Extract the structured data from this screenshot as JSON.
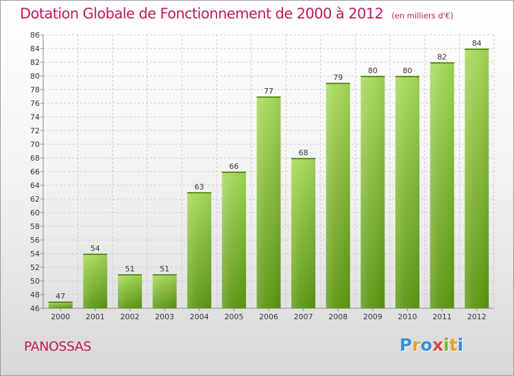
{
  "title": "Dotation Globale de Fonctionnement de 2000 à 2012",
  "unit_note": "(en milliers d'€)",
  "commune": "PANOSSAS",
  "logo": {
    "letters": [
      "P",
      "r",
      "o",
      "x",
      "i",
      "t",
      "i"
    ],
    "colors": [
      "#3a8fd8",
      "#e8a020",
      "#3a8fd8",
      "#e04050",
      "#7ab828",
      "#e8a020",
      "#3a8fd8"
    ]
  },
  "colors": {
    "title": "#c0185b",
    "bar_light": "#a6d95a",
    "bar_dark": "#5e9612",
    "grid": "#c8c8c8"
  },
  "chart_data": {
    "type": "bar",
    "title": "Dotation Globale de Fonctionnement de 2000 à 2012",
    "subtitle": "(en milliers d'€)",
    "categories": [
      "2000",
      "2001",
      "2002",
      "2003",
      "2004",
      "2005",
      "2006",
      "2007",
      "2008",
      "2009",
      "2010",
      "2011",
      "2012"
    ],
    "values": [
      47,
      54,
      51,
      51,
      63,
      66,
      77,
      68,
      79,
      80,
      80,
      82,
      84
    ],
    "ylim": [
      46,
      86
    ],
    "yticks": [
      46,
      48,
      50,
      52,
      54,
      56,
      58,
      60,
      62,
      64,
      66,
      68,
      70,
      72,
      74,
      76,
      78,
      80,
      82,
      84,
      86
    ],
    "grid": true,
    "grid_style": "dashed",
    "legend": "none"
  }
}
